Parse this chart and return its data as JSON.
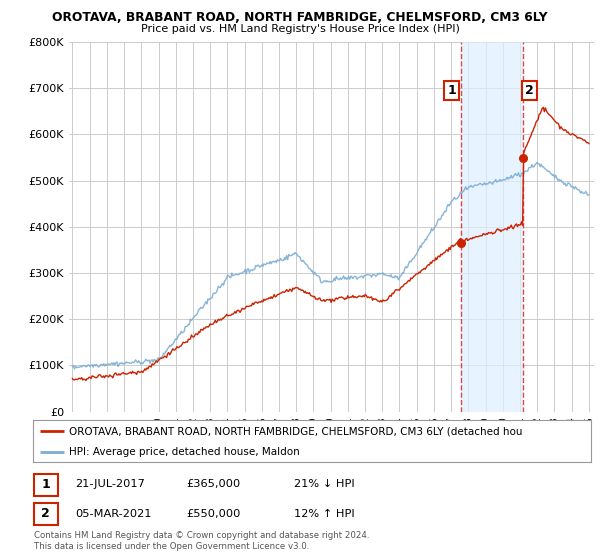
{
  "title": "OROTAVA, BRABANT ROAD, NORTH FAMBRIDGE, CHELMSFORD, CM3 6LY",
  "subtitle": "Price paid vs. HM Land Registry's House Price Index (HPI)",
  "ylim": [
    0,
    800000
  ],
  "yticks": [
    0,
    100000,
    200000,
    300000,
    400000,
    500000,
    600000,
    700000,
    800000
  ],
  "hpi_color": "#7aadd4",
  "hpi_fill_color": "#ddeeff",
  "price_color": "#cc2200",
  "vline_color": "#dd3333",
  "bg_color": "#ffffff",
  "grid_color": "#cccccc",
  "ann1_year": 2017.55,
  "ann1_price": 365000,
  "ann1_label": "1",
  "ann1_date": "21-JUL-2017",
  "ann1_amount": "£365,000",
  "ann1_pct": "21% ↓ HPI",
  "ann2_year": 2021.17,
  "ann2_price": 550000,
  "ann2_label": "2",
  "ann2_date": "05-MAR-2021",
  "ann2_amount": "£550,000",
  "ann2_pct": "12% ↑ HPI",
  "legend_line1": "OROTAVA, BRABANT ROAD, NORTH FAMBRIDGE, CHELMSFORD, CM3 6LY (detached hou",
  "legend_line2": "HPI: Average price, detached house, Maldon",
  "footer1": "Contains HM Land Registry data © Crown copyright and database right 2024.",
  "footer2": "This data is licensed under the Open Government Licence v3.0."
}
